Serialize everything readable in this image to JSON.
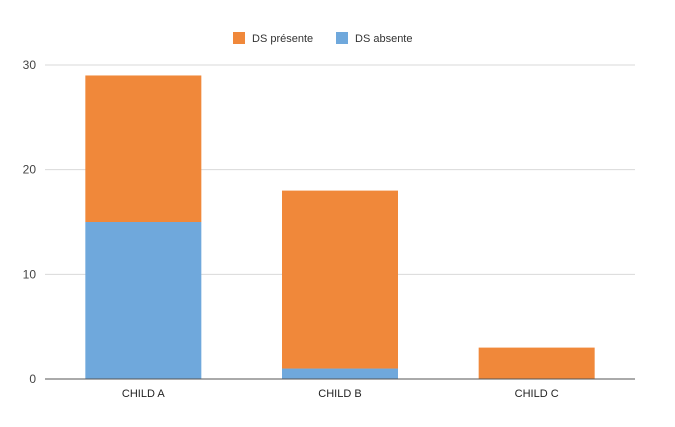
{
  "chart_data": {
    "type": "bar",
    "stacked": true,
    "categories": [
      "CHILD A",
      "CHILD B",
      "CHILD C"
    ],
    "series": [
      {
        "name": "DS absente",
        "values": [
          15,
          1,
          0
        ],
        "color": "#6fa8dc"
      },
      {
        "name": "DS présente",
        "values": [
          14,
          17,
          3
        ],
        "color": "#f0883a"
      }
    ],
    "legend_order": [
      "DS présente",
      "DS absente"
    ],
    "legend_position": "top",
    "ylim": [
      0,
      30
    ],
    "yticks": [
      "0",
      "10",
      "20",
      "30"
    ],
    "grid": true,
    "title": "",
    "xlabel": "",
    "ylabel": ""
  }
}
